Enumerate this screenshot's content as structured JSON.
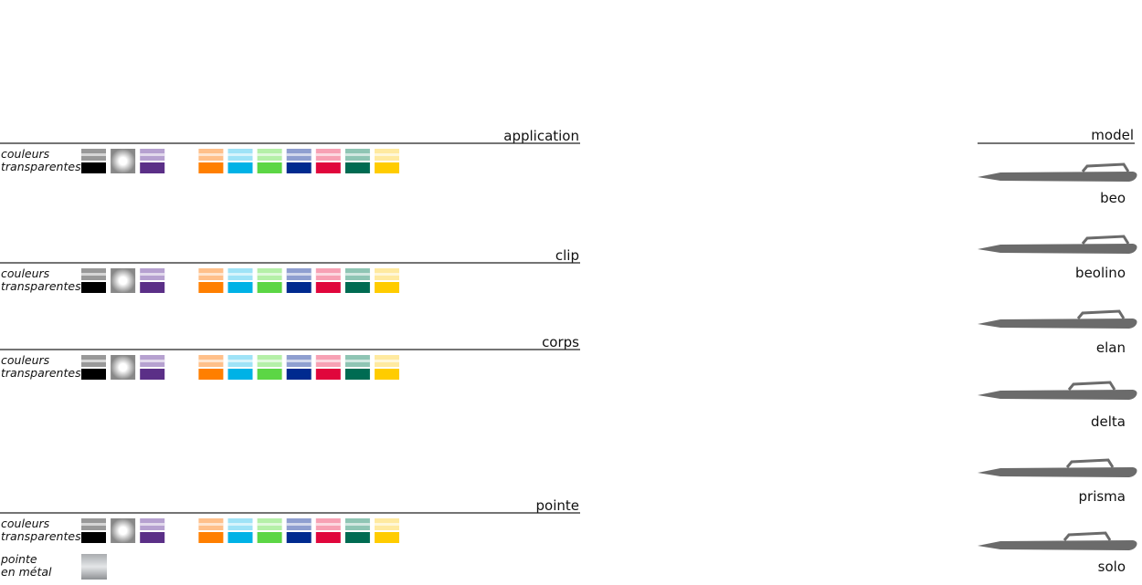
{
  "sections": [
    {
      "title": "application",
      "rows": [
        [
          "couleurs",
          "transparentes"
        ]
      ]
    },
    {
      "title": "clip",
      "rows": [
        [
          "couleurs",
          "transparentes"
        ]
      ]
    },
    {
      "title": "corps",
      "rows": [
        [
          "couleurs",
          "transparentes"
        ]
      ]
    },
    {
      "title": "pointe",
      "rows": [
        [
          "couleurs",
          "transparentes"
        ],
        [
          "pointe",
          "en métal"
        ]
      ]
    }
  ],
  "model": {
    "title": "model",
    "items": [
      "beo",
      "beolino",
      "elan",
      "delta",
      "prisma",
      "solo"
    ]
  }
}
